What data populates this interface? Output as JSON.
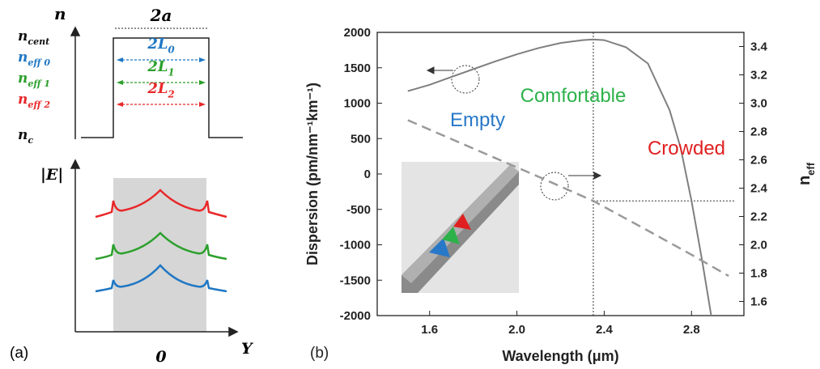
{
  "panel_a": {
    "label": "(a)",
    "index_axis": "n",
    "width": "2a",
    "levels": [
      {
        "base": "n",
        "sub": "cent",
        "color": "#111111"
      },
      {
        "base": "n",
        "sub": "eff 0",
        "color": "#1f77c4"
      },
      {
        "base": "n",
        "sub": "eff 1",
        "color": "#2ca02c"
      },
      {
        "base": "n",
        "sub": "eff 2",
        "color": "#e8282a"
      }
    ],
    "lengths": [
      {
        "base": "2L",
        "sub": "0",
        "color": "#1f77c4"
      },
      {
        "base": "2L",
        "sub": "1",
        "color": "#2ca02c"
      },
      {
        "base": "2L",
        "sub": "2",
        "color": "#e8282a"
      }
    ],
    "cladding": {
      "base": "n",
      "sub": "c"
    },
    "field_axis": "|E|",
    "origin": "0",
    "position_axis": "Y"
  },
  "chart_data": {
    "type": "line",
    "panel_label": "(b)",
    "xlabel": "Wavelength (μm)",
    "ylabel": "Dispersion (pm/nm⁻¹km⁻¹)",
    "y2label": {
      "base": "n",
      "sub": "eff"
    },
    "xlim": [
      1.36,
      3.04
    ],
    "xticks": [
      1.6,
      {
        "value": 2,
        "label": "2.0"
      },
      2.4,
      2.8
    ],
    "ylim": [
      -2000,
      2000
    ],
    "yticks": [
      -2000,
      -1500,
      -1000,
      -500,
      0,
      500,
      1000,
      1500,
      2000
    ],
    "y2lim": [
      1.5,
      3.5
    ],
    "y2ticks": [
      1.6,
      1.8,
      {
        "value": 2,
        "label": "2.0"
      },
      2.2,
      2.4,
      2.6,
      2.8,
      {
        "value": 3,
        "label": "3.0"
      },
      3.2,
      3.4
    ],
    "series": [
      {
        "color": "#7f7f7f",
        "style": "solid",
        "x": [
          1.5,
          1.6,
          1.7,
          1.8,
          1.9,
          2.0,
          2.1,
          2.2,
          2.3,
          2.35,
          2.4,
          2.5,
          2.6,
          2.7,
          2.75,
          2.8,
          2.85,
          2.89
        ],
        "values": [
          1170,
          1260,
          1370,
          1480,
          1590,
          1690,
          1780,
          1850,
          1890,
          1900,
          1890,
          1790,
          1560,
          900,
          370,
          -380,
          -1250,
          -2000
        ]
      },
      {
        "color": "#9a9a9a",
        "style": "dashed",
        "axis": "y2",
        "x": [
          1.5,
          1.8,
          2.1,
          2.35,
          2.6,
          2.8,
          2.97
        ],
        "values": [
          2.88,
          2.68,
          2.48,
          2.31,
          2.1,
          1.93,
          1.78
        ]
      }
    ],
    "guide_lines": {
      "x": 2.35,
      "y2": 2.31
    },
    "annotations": [
      {
        "text": "Empty",
        "color": "#2878c8"
      },
      {
        "text": "Comfortable",
        "color": "#2db24a"
      },
      {
        "text": "Crowded",
        "color": "#e02020"
      }
    ]
  }
}
